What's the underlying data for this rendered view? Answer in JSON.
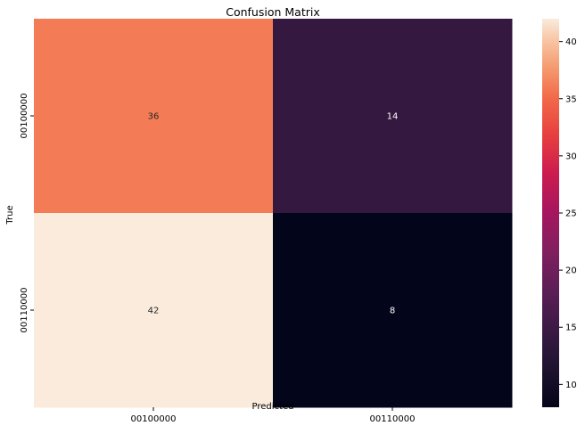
{
  "chart_data": {
    "type": "heatmap",
    "title": "Confusion Matrix",
    "xlabel": "Predicted",
    "ylabel": "True",
    "x_categories": [
      "00100000",
      "00110000"
    ],
    "y_categories": [
      "00100000",
      "00110000"
    ],
    "values": [
      [
        36,
        14
      ],
      [
        42,
        8
      ]
    ],
    "colormap": "rocket",
    "colorbar": {
      "vmin": 8,
      "vmax": 42,
      "ticks": [
        10,
        15,
        20,
        25,
        30,
        35,
        40
      ]
    },
    "annotations": true,
    "grid": false
  }
}
